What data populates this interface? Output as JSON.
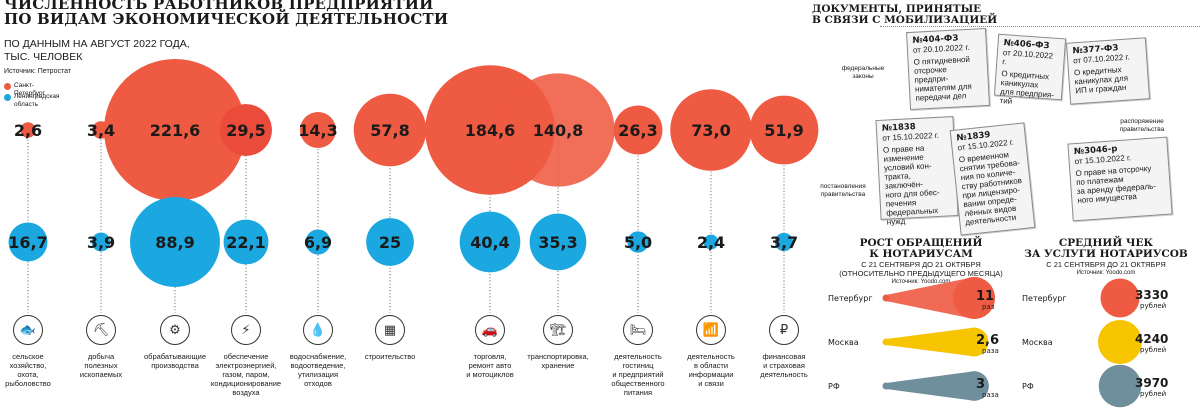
{
  "header": {
    "title_line1": "Численность работников предприятий",
    "title_line2": "по видам экономической деятельности",
    "subtitle_line1": "по данным на август 2022 года,",
    "subtitle_line2": "тыс. человек",
    "source": "Источник: Петростат",
    "legend_spb": "Санкт-Петербург",
    "legend_lo_line1": "Ленинградская",
    "legend_lo_line2": "область"
  },
  "colors": {
    "spb": "#ef5a42",
    "lo": "#1ba8e0",
    "overlap": "#e5302e",
    "moscow": "#f7c400",
    "rf": "#6f8f9c"
  },
  "chart_data": [
    {
      "type": "bubble",
      "categories": [
        "сельское хозяйство, охота, рыболовство",
        "добыча полезных ископаемых",
        "обрабатывающие производства",
        "обеспечение электроэнергией, газом, паром, кондиционирование воздуха",
        "водоснабжение, водоотведение, утилизация отходов",
        "строительство",
        "торговля, ремонт авто и мотоциклов",
        "транспортировка, хранение",
        "деятельность гостиниц и предприятий общественного питания",
        "деятельность в области информации и связи",
        "финансовая и страховая деятельность"
      ],
      "series": [
        {
          "name": "Санкт-Петербург",
          "values": [
            2.6,
            3.4,
            221.6,
            29.5,
            14.3,
            57.8,
            184.6,
            140.8,
            26.3,
            73.0,
            51.9
          ],
          "labels": [
            "2,6",
            "3,4",
            "221,6",
            "29,5",
            "14,3",
            "57,8",
            "184,6",
            "140,8",
            "26,3",
            "73,0",
            "51,9"
          ]
        },
        {
          "name": "Ленинградская область",
          "values": [
            16.7,
            3.9,
            88.9,
            22.1,
            6.9,
            25,
            40.4,
            35.3,
            5.0,
            2.4,
            3.7
          ],
          "labels": [
            "16,7",
            "3,9",
            "88,9",
            "22,1",
            "6,9",
            "25",
            "40,4",
            "35,3",
            "5,0",
            "2,4",
            "3,7"
          ]
        }
      ]
    },
    {
      "type": "bar",
      "title_line1": "Рост обращений",
      "title_line2": "к нотариусам",
      "subtitle_line1": "с 21 сентября до 21 октября",
      "subtitle_line2": "(относительно предыдущего месяца)",
      "source": "Источник: Yoodo.com",
      "categories": [
        "Петербург",
        "Москва",
        "РФ"
      ],
      "values": [
        11,
        2.6,
        3
      ],
      "labels": [
        "11",
        "2,6",
        "3"
      ],
      "unit": "раз",
      "unit_alt": "раза"
    },
    {
      "type": "bubble",
      "title_line1": "Средний чек",
      "title_line2": "за услуги нотариусов",
      "subtitle": "с 21 сентября до 21 октября",
      "source": "Источник: Yoodo.com",
      "categories": [
        "Петербург",
        "Москва",
        "РФ"
      ],
      "values": [
        3330,
        4240,
        3970
      ],
      "labels": [
        "3330",
        "4240",
        "3970"
      ],
      "unit": "рублей"
    }
  ],
  "categories_display": [
    [
      "сельское",
      "хозяйство,",
      "охота,",
      "рыболовство"
    ],
    [
      "добыча",
      "полезных",
      "ископаемых"
    ],
    [
      "обрабатывающие",
      "производства"
    ],
    [
      "обеспечение",
      "электроэнергией,",
      "газом, паром,",
      "кондиционирование",
      "воздуха"
    ],
    [
      "водоснабжение,",
      "водоотведение,",
      "утилизация",
      "отходов"
    ],
    [
      "строительство"
    ],
    [
      "торговля,",
      "ремонт авто",
      "и мотоциклов"
    ],
    [
      "транспортировка,",
      "хранение"
    ],
    [
      "деятельность",
      "гостиниц",
      "и предприятий",
      "общественного",
      "питания"
    ],
    [
      "деятельность",
      "в области",
      "информации",
      "и связи"
    ],
    [
      "финансовая",
      "и страховая",
      "деятельность"
    ]
  ],
  "icons": [
    "fish-icon",
    "mining-icon",
    "factory-icon",
    "electricity-icon",
    "water-icon",
    "brick-icon",
    "car-icon",
    "crane-icon",
    "hotel-icon",
    "wifi-icon",
    "money-icon"
  ],
  "documents": {
    "title_line1": "Документы, принятые",
    "title_line2": "в связи с мобилизацией",
    "label_federal_line1": "федеральные",
    "label_federal_line2": "законы",
    "label_gov_line1": "постановления",
    "label_gov_line2": "правительства",
    "label_order_line1": "распоряжение",
    "label_order_line2": "правительства",
    "cards": [
      {
        "num": "№404-ФЗ",
        "date": "от 20.10.2022 г.",
        "lines": [
          "О пятидневной",
          "отсрочке предпри-",
          "нимателям для",
          "передачи дел"
        ]
      },
      {
        "num": "№406-ФЗ",
        "date": "от 20.10.2022 г.",
        "lines": [
          "О кредитных",
          "каникулах",
          "для предприя-",
          "тий"
        ]
      },
      {
        "num": "№377-ФЗ",
        "date": "от 07.10.2022 г.",
        "lines": [
          "О кредитных",
          "каникулах для",
          "ИП и граждан"
        ]
      },
      {
        "num": "№1838",
        "date": "от 15.10.2022 г.",
        "lines": [
          "О праве на",
          "изменение",
          "условий кон-",
          "тракта, заключён-",
          "ного для обес-",
          "печения",
          "федеральных нужд"
        ]
      },
      {
        "num": "№1839",
        "date": "от 15.10.2022 г.",
        "lines": [
          "О временном",
          "снятии требова-",
          "ния по количе-",
          "ству работников",
          "при лицензиро-",
          "вании опреде-",
          "лённых видов",
          "деятельности"
        ]
      },
      {
        "num": "№3046-р",
        "date": "от 15.10.2022 г.",
        "lines": [
          "О праве на отсрочку",
          "по платежам",
          "за аренду федераль-",
          "ного имущества"
        ]
      }
    ]
  }
}
